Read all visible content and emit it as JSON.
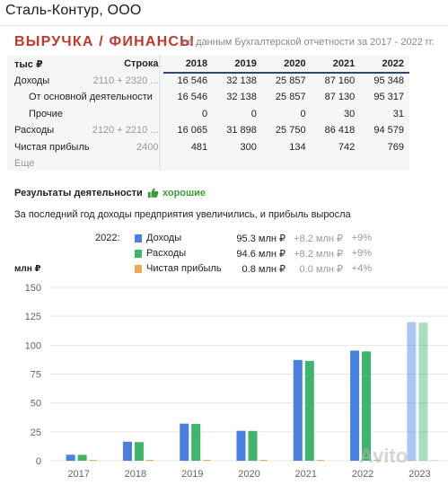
{
  "company": {
    "name": "Сталь-Контур, ООО"
  },
  "section": {
    "title": "ВЫРУЧКА / ФИНАНСЫ",
    "subtitle": "по данным Бухгалтерской отчетности за 2017 - 2022 гг."
  },
  "table": {
    "unit_header": "тыс ₽",
    "code_header": "Строка",
    "years": [
      "2018",
      "2019",
      "2020",
      "2021",
      "2022"
    ],
    "rows": [
      {
        "label": "Доходы",
        "code": "2110 + 2320 ...",
        "values": [
          "16 546",
          "32 138",
          "25 857",
          "87 160",
          "95 348"
        ]
      },
      {
        "label": "От основной деятельности",
        "code": "",
        "values": [
          "16 546",
          "32 138",
          "25 857",
          "87 130",
          "95 317"
        ]
      },
      {
        "label": "Прочие",
        "code": "",
        "values": [
          "0",
          "0",
          "0",
          "30",
          "31"
        ]
      },
      {
        "label": "Расходы",
        "code": "2120 + 2210 ...",
        "values": [
          "16 065",
          "31 898",
          "25 750",
          "86 418",
          "94 579"
        ]
      },
      {
        "label": "Чистая прибыль",
        "code": "2400",
        "values": [
          "481",
          "300",
          "134",
          "742",
          "769"
        ]
      }
    ],
    "more_label": "Еще"
  },
  "results": {
    "title": "Результаты деятельности",
    "rating": "хорошие",
    "description": "За последний год доходы предприятия увеличились, и прибыль выросла"
  },
  "legend": {
    "year": "2022:",
    "items": [
      {
        "name": "Доходы",
        "value": "95.3 млн ₽",
        "delta": "+8.2 млн ₽",
        "pct": "+9%",
        "color": "#4a7fe0"
      },
      {
        "name": "Расходы",
        "value": "94.6 млн ₽",
        "delta": "+8.2 млн ₽",
        "pct": "+9%",
        "color": "#3fb56b"
      },
      {
        "name": "Чистая прибыль",
        "value": "0.8 млн ₽",
        "delta": "0.0 млн ₽",
        "pct": "+4%",
        "color": "#f0a75a"
      }
    ]
  },
  "chart_data": {
    "type": "bar",
    "unit_label": "млн ₽",
    "categories": [
      "2017",
      "2018",
      "2019",
      "2020",
      "2021",
      "2022",
      "2023"
    ],
    "ylim": [
      0,
      150
    ],
    "yticks": [
      0,
      25,
      50,
      75,
      100,
      125,
      150
    ],
    "grid": true,
    "series": [
      {
        "name": "Доходы",
        "color": "#4a7fe0",
        "values": [
          5.2,
          16.5,
          32.1,
          25.9,
          87.2,
          95.3,
          120.0
        ]
      },
      {
        "name": "Расходы",
        "color": "#3fb56b",
        "values": [
          5.1,
          16.1,
          31.9,
          25.8,
          86.4,
          94.6,
          119.5
        ]
      },
      {
        "name": "Чистая прибыль",
        "color": "#f0a75a",
        "values": [
          0.1,
          0.5,
          0.3,
          0.1,
          0.7,
          0.8,
          0.5
        ]
      }
    ],
    "forecast_categories": [
      "2023"
    ]
  },
  "watermark": "Avito"
}
